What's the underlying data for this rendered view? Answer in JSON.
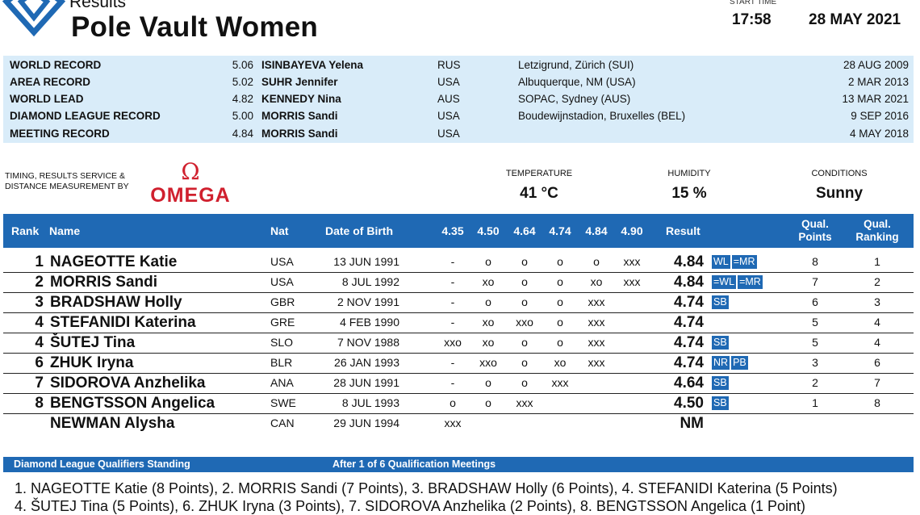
{
  "header": {
    "section": "Results",
    "event": "Pole Vault Women",
    "start_time_label": "START TIME",
    "start_time": "17:58",
    "date": "28 MAY 2021"
  },
  "colors": {
    "brand_blue": "#1f69b4",
    "records_bg": "#d9ecf9",
    "omega_red": "#d0202e"
  },
  "records": [
    {
      "category": "WORLD RECORD",
      "mark": "5.06",
      "name": "ISINBAYEVA Yelena",
      "nat": "RUS",
      "venue": "Letzigrund, Zürich (SUI)",
      "date": "28 AUG 2009"
    },
    {
      "category": "AREA RECORD",
      "mark": "5.02",
      "name": "SUHR Jennifer",
      "nat": "USA",
      "venue": "Albuquerque, NM (USA)",
      "date": "2 MAR 2013"
    },
    {
      "category": "WORLD LEAD",
      "mark": "4.82",
      "name": "KENNEDY Nina",
      "nat": "AUS",
      "venue": "SOPAC, Sydney (AUS)",
      "date": "13 MAR 2021"
    },
    {
      "category": "DIAMOND LEAGUE RECORD",
      "mark": "5.00",
      "name": "MORRIS Sandi",
      "nat": "USA",
      "venue": "Boudewijnstadion, Bruxelles (BEL)",
      "date": "9 SEP 2016"
    },
    {
      "category": "MEETING RECORD",
      "mark": "4.84",
      "name": "MORRIS Sandi",
      "nat": "USA",
      "venue": "",
      "date": "4 MAY 2018"
    }
  ],
  "timing": {
    "label_line1": "TIMING, RESULTS SERVICE &",
    "label_line2": "DISTANCE MEASUREMENT BY",
    "brand": "OMEGA"
  },
  "conditions": {
    "temperature_label": "TEMPERATURE",
    "temperature": "41 °C",
    "humidity_label": "HUMIDITY",
    "humidity": "15 %",
    "conditions_label": "CONDITIONS",
    "conditions": "Sunny"
  },
  "table": {
    "headers": {
      "rank": "Rank",
      "name": "Name",
      "nat": "Nat",
      "dob": "Date of Birth",
      "heights": [
        "4.35",
        "4.50",
        "4.64",
        "4.74",
        "4.84",
        "4.90"
      ],
      "result": "Result",
      "qual_points_1": "Qual.",
      "qual_points_2": "Points",
      "qual_ranking_1": "Qual.",
      "qual_ranking_2": "Ranking"
    },
    "rows": [
      {
        "rank": "1",
        "name": "NAGEOTTE Katie",
        "nat": "USA",
        "dob": "13 JUN 1991",
        "attempts": [
          "-",
          "o",
          "o",
          "o",
          "o",
          "xxx"
        ],
        "result": "4.84",
        "badges": [
          "WL",
          "=MR"
        ],
        "points": "8",
        "qual_rank": "1"
      },
      {
        "rank": "2",
        "name": "MORRIS Sandi",
        "nat": "USA",
        "dob": "8 JUL 1992",
        "attempts": [
          "-",
          "xo",
          "o",
          "o",
          "xo",
          "xxx"
        ],
        "result": "4.84",
        "badges": [
          "=WL",
          "=MR"
        ],
        "points": "7",
        "qual_rank": "2"
      },
      {
        "rank": "3",
        "name": "BRADSHAW Holly",
        "nat": "GBR",
        "dob": "2 NOV 1991",
        "attempts": [
          "-",
          "o",
          "o",
          "o",
          "xxx",
          ""
        ],
        "result": "4.74",
        "badges": [
          "SB"
        ],
        "points": "6",
        "qual_rank": "3"
      },
      {
        "rank": "4",
        "name": "STEFANIDI Katerina",
        "nat": "GRE",
        "dob": "4 FEB 1990",
        "attempts": [
          "-",
          "xo",
          "xxo",
          "o",
          "xxx",
          ""
        ],
        "result": "4.74",
        "badges": [],
        "points": "5",
        "qual_rank": "4"
      },
      {
        "rank": "4",
        "name": "ŠUTEJ Tina",
        "nat": "SLO",
        "dob": "7 NOV 1988",
        "attempts": [
          "xxo",
          "xo",
          "o",
          "o",
          "xxx",
          ""
        ],
        "result": "4.74",
        "badges": [
          "SB"
        ],
        "points": "5",
        "qual_rank": "4"
      },
      {
        "rank": "6",
        "name": "ZHUK Iryna",
        "nat": "BLR",
        "dob": "26 JAN 1993",
        "attempts": [
          "-",
          "xxo",
          "o",
          "xo",
          "xxx",
          ""
        ],
        "result": "4.74",
        "badges": [
          "NR",
          "PB"
        ],
        "points": "3",
        "qual_rank": "6"
      },
      {
        "rank": "7",
        "name": "SIDOROVA Anzhelika",
        "nat": "ANA",
        "dob": "28 JUN 1991",
        "attempts": [
          "-",
          "o",
          "o",
          "xxx",
          "",
          ""
        ],
        "result": "4.64",
        "badges": [
          "SB"
        ],
        "points": "2",
        "qual_rank": "7"
      },
      {
        "rank": "8",
        "name": "BENGTSSON Angelica",
        "nat": "SWE",
        "dob": "8 JUL 1993",
        "attempts": [
          "o",
          "o",
          "xxx",
          "",
          "",
          ""
        ],
        "result": "4.50",
        "badges": [
          "SB"
        ],
        "points": "1",
        "qual_rank": "8"
      },
      {
        "rank": "",
        "name": "NEWMAN Alysha",
        "nat": "CAN",
        "dob": "29 JUN 1994",
        "attempts": [
          "xxx",
          "",
          "",
          "",
          "",
          ""
        ],
        "result": "NM",
        "badges": [],
        "points": "",
        "qual_rank": ""
      }
    ]
  },
  "standings": {
    "title": "Diamond League Qualifiers Standing",
    "subtitle": "After 1 of 6 Qualification Meetings",
    "line1": "1. NAGEOTTE Katie (8 Points), 2. MORRIS Sandi (7 Points), 3. BRADSHAW Holly (6 Points), 4. STEFANIDI Katerina (5 Points)",
    "line2": "4. ŠUTEJ Tina (5 Points), 6. ZHUK Iryna (3 Points), 7. SIDOROVA Anzhelika (2 Points), 8. BENGTSSON Angelica (1 Point)"
  }
}
